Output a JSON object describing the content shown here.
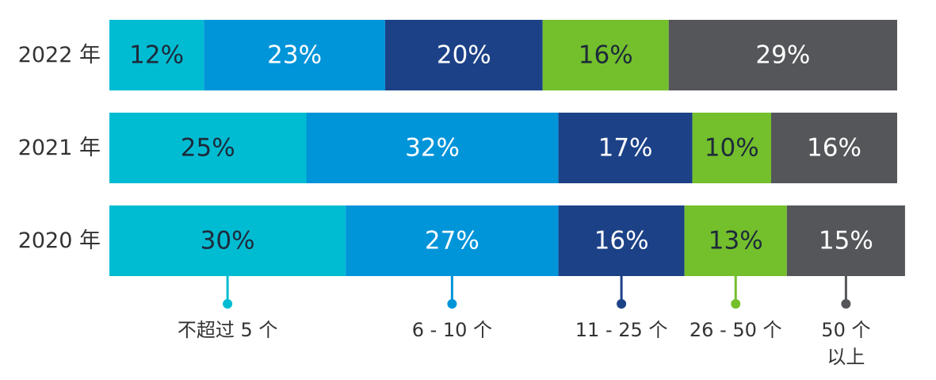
{
  "chart_data": {
    "type": "bar",
    "orientation": "horizontal",
    "stacked": true,
    "categories": [
      "2022 年",
      "2021 年",
      "2020 年"
    ],
    "series": [
      {
        "name": "不超过 5 个",
        "legend_lines": [
          "不超过 5 个"
        ],
        "color": "#00BCD2",
        "values": [
          12,
          25,
          30
        ],
        "labels": [
          "12%",
          "25%",
          "30%"
        ],
        "label_color": "#1d2a3a"
      },
      {
        "name": "6 - 10 个",
        "legend_lines": [
          "6 - 10 个"
        ],
        "color": "#0094D9",
        "values": [
          23,
          32,
          27
        ],
        "labels": [
          "23%",
          "32%",
          "27%"
        ],
        "label_color": "#ffffff"
      },
      {
        "name": "11 - 25 个",
        "legend_lines": [
          "11 - 25 个"
        ],
        "color": "#1C4187",
        "values": [
          20,
          17,
          16
        ],
        "labels": [
          "20%",
          "17%",
          "16%"
        ],
        "label_color": "#ffffff"
      },
      {
        "name": "26 - 50 个",
        "legend_lines": [
          "26 - 50 个"
        ],
        "color": "#74BF2C",
        "values": [
          16,
          10,
          13
        ],
        "labels": [
          "16%",
          "10%",
          "13%"
        ],
        "label_color": "#1d2a3a"
      },
      {
        "name": "50 个以上",
        "legend_lines": [
          "50 个",
          "以上"
        ],
        "color": "#54565A",
        "values": [
          29,
          16,
          15
        ],
        "labels": [
          "29%",
          "16%",
          "15%"
        ],
        "label_color": "#ffffff"
      }
    ],
    "xlim": [
      0,
      100
    ],
    "grid": false,
    "legend_position": "bottom"
  }
}
